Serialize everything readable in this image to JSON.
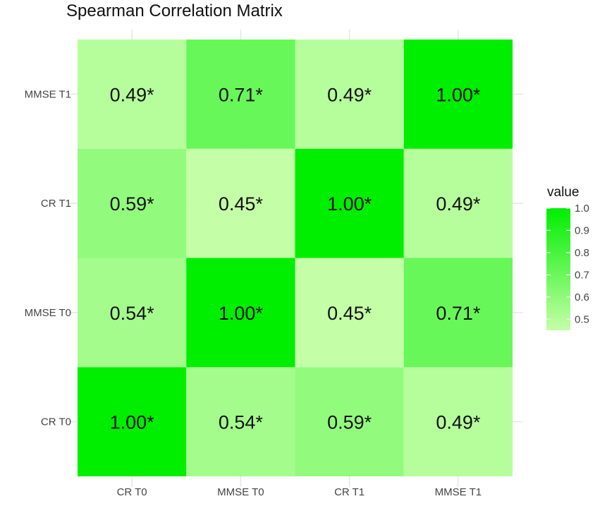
{
  "chart_data": {
    "type": "heatmap",
    "title": "Spearman Correlation Matrix",
    "x_categories": [
      "CR T0",
      "MMSE T0",
      "CR T1",
      "MMSE T1"
    ],
    "y_categories": [
      "CR T0",
      "MMSE T0",
      "CR T1",
      "MMSE T1"
    ],
    "values": [
      [
        1.0,
        0.54,
        0.59,
        0.49
      ],
      [
        0.54,
        1.0,
        0.45,
        0.71
      ],
      [
        0.59,
        0.45,
        1.0,
        0.49
      ],
      [
        0.49,
        0.71,
        0.49,
        1.0
      ]
    ],
    "cell_labels": [
      [
        "1.00*",
        "0.54*",
        "0.59*",
        "0.49*"
      ],
      [
        "0.54*",
        "1.00*",
        "0.45*",
        "0.71*"
      ],
      [
        "0.59*",
        "0.45*",
        "1.00*",
        "0.49*"
      ],
      [
        "0.49*",
        "0.71*",
        "0.49*",
        "1.00*"
      ]
    ],
    "legend": {
      "title": "value",
      "ticks": [
        "1.0",
        "0.9",
        "0.8",
        "0.7",
        "0.6",
        "0.5"
      ],
      "range": [
        0.45,
        1.0
      ],
      "placement": "right"
    },
    "colors": {
      "low": "#c4ffa8",
      "high": "#00ee00",
      "grid": "#e6e6e6"
    },
    "grid": true
  }
}
